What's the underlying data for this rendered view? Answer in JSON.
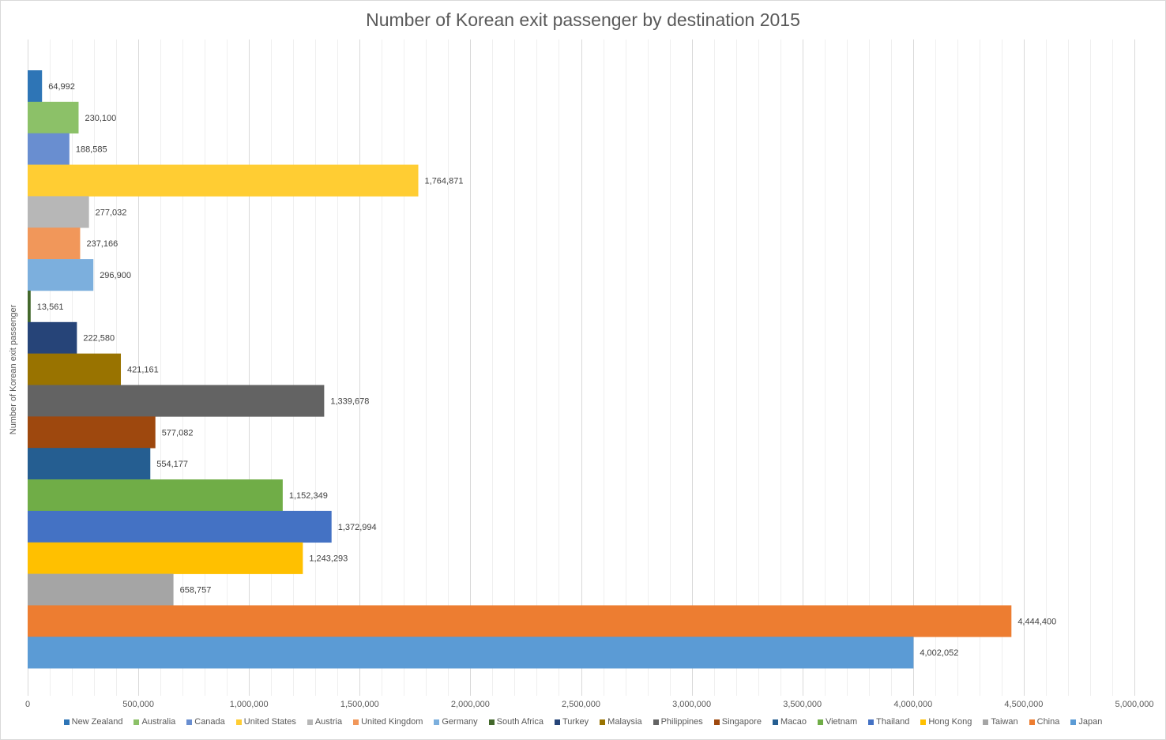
{
  "chart_data": {
    "type": "bar",
    "orientation": "horizontal",
    "title": "Number of Korean exit passenger by destination 2015",
    "xlabel": "",
    "ylabel": "Number of Korean exit passenger",
    "xlim": [
      0,
      5000000
    ],
    "x_major_ticks": [
      0,
      500000,
      1000000,
      1500000,
      2000000,
      2500000,
      3000000,
      3500000,
      4000000,
      4500000,
      5000000
    ],
    "x_tick_labels": [
      "0",
      "500,000",
      "1,000,000",
      "1,500,000",
      "2,000,000",
      "2,500,000",
      "3,000,000",
      "3,500,000",
      "4,000,000",
      "4,500,000",
      "5,000,000"
    ],
    "minor_gridline_step": 100000,
    "grid": true,
    "legend_position": "bottom",
    "series": [
      {
        "name": "New Zealand",
        "value": 64992,
        "label": "64,992",
        "color": "#2e75b6"
      },
      {
        "name": "Australia",
        "value": 230100,
        "label": "230,100",
        "color": "#8cc168"
      },
      {
        "name": "Canada",
        "value": 188585,
        "label": "188,585",
        "color": "#698ed0"
      },
      {
        "name": "United States",
        "value": 1764871,
        "label": "1,764,871",
        "color": "#ffcd33"
      },
      {
        "name": "Austria",
        "value": 277032,
        "label": "277,032",
        "color": "#b7b7b7"
      },
      {
        "name": "United Kingdom",
        "value": 237166,
        "label": "237,166",
        "color": "#f1975a"
      },
      {
        "name": "Germany",
        "value": 296900,
        "label": "296,900",
        "color": "#7cafdd"
      },
      {
        "name": "South Africa",
        "value": 13561,
        "label": "13,561",
        "color": "#43682b"
      },
      {
        "name": "Turkey",
        "value": 222580,
        "label": "222,580",
        "color": "#264478"
      },
      {
        "name": "Malaysia",
        "value": 421161,
        "label": "421,161",
        "color": "#997300"
      },
      {
        "name": "Philippines",
        "value": 1339678,
        "label": "1,339,678",
        "color": "#636363"
      },
      {
        "name": "Singapore",
        "value": 577082,
        "label": "577,082",
        "color": "#9e480e"
      },
      {
        "name": "Macao",
        "value": 554177,
        "label": "554,177",
        "color": "#255e91"
      },
      {
        "name": "Vietnam",
        "value": 1152349,
        "label": "1,152,349",
        "color": "#70ad47"
      },
      {
        "name": "Thailand",
        "value": 1372994,
        "label": "1,372,994",
        "color": "#4472c4"
      },
      {
        "name": "Hong Kong",
        "value": 1243293,
        "label": "1,243,293",
        "color": "#ffc000"
      },
      {
        "name": "Taiwan",
        "value": 658757,
        "label": "658,757",
        "color": "#a5a5a5"
      },
      {
        "name": "China",
        "value": 4444400,
        "label": "4,444,400",
        "color": "#ed7d31"
      },
      {
        "name": "Japan",
        "value": 4002052,
        "label": "4,002,052",
        "color": "#5b9bd5"
      }
    ]
  }
}
